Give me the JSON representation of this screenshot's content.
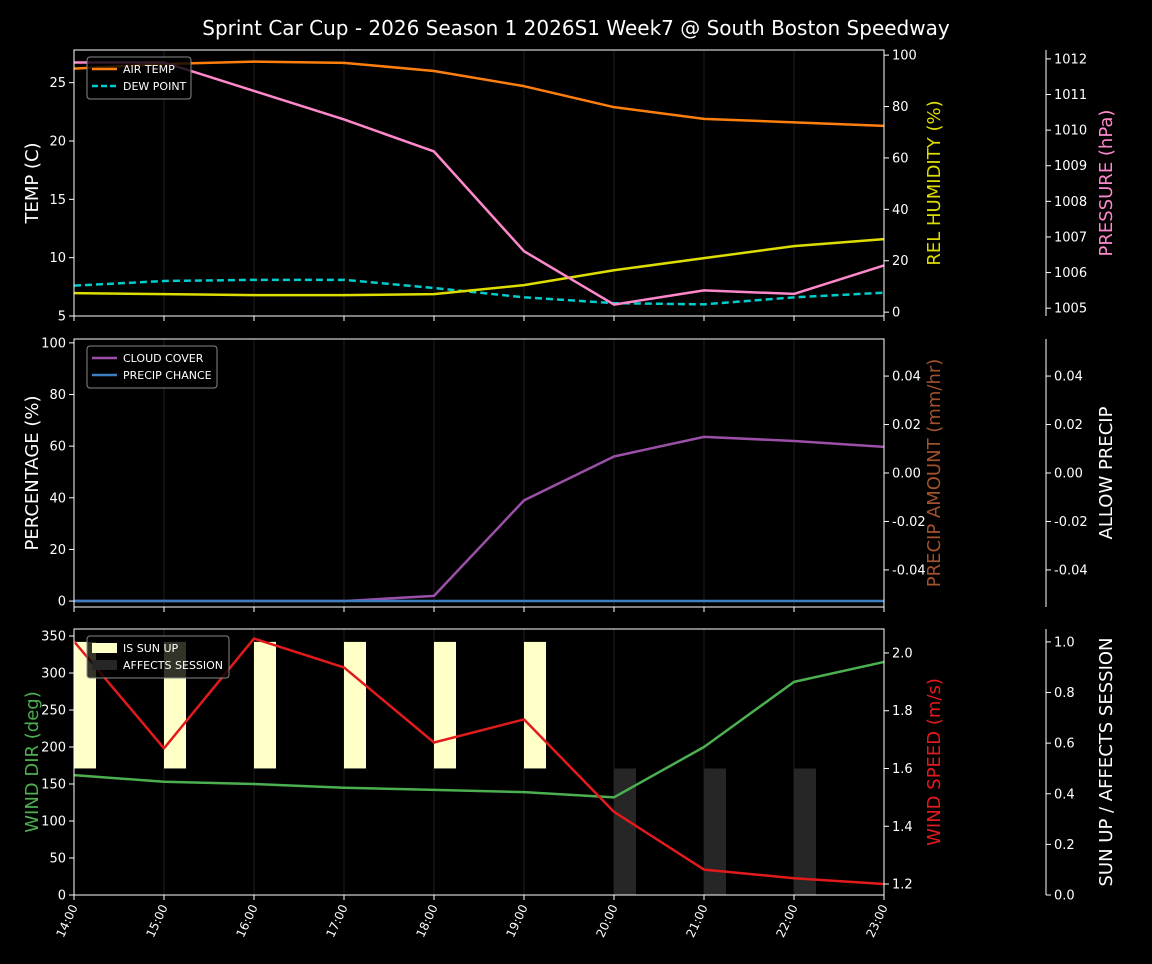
{
  "title": "Sprint Car Cup - 2026 Season 1 2026S1 Week7 @ South Boston Speedway",
  "chart_data": [
    {
      "type": "line",
      "x": [
        "14:00",
        "15:00",
        "16:00",
        "17:00",
        "18:00",
        "19:00",
        "20:00",
        "21:00",
        "22:00",
        "23:00"
      ],
      "axes": [
        {
          "side": "left",
          "label": "TEMP (C)",
          "color": "#ffffff",
          "ylim": [
            5,
            27.8
          ],
          "ticks": [
            5,
            10,
            15,
            20,
            25
          ]
        },
        {
          "side": "right",
          "label": "REL HUMIDITY (%)",
          "color": "#dddd00",
          "ylim": [
            -1.5,
            102
          ],
          "ticks": [
            0,
            20,
            40,
            60,
            80,
            100
          ]
        },
        {
          "side": "right2",
          "label": "PRESSURE (hPa)",
          "color": "#ff88cc",
          "ylim": [
            1004.78,
            1012.25
          ],
          "ticks": [
            1005,
            1006,
            1007,
            1008,
            1009,
            1010,
            1011,
            1012
          ]
        }
      ],
      "series": [
        {
          "name": "AIR TEMP",
          "axis": 0,
          "color": "#ff7f0e",
          "dash": false,
          "legend": true,
          "values": [
            26.2,
            26.6,
            26.8,
            26.7,
            26.0,
            24.7,
            22.9,
            21.9,
            21.6,
            21.3
          ]
        },
        {
          "name": "DEW POINT",
          "axis": 0,
          "color": "#00cccc",
          "dash": true,
          "legend": true,
          "values": [
            7.6,
            8.0,
            8.1,
            8.1,
            7.4,
            6.6,
            6.1,
            6.0,
            6.6,
            7.0
          ]
        },
        {
          "axis": 1,
          "color": "#dddd00",
          "dash": false,
          "legend": false,
          "values": [
            7.4,
            7.0,
            6.6,
            6.6,
            7.0,
            10.5,
            16.3,
            21.0,
            25.7,
            28.4
          ]
        },
        {
          "axis": 2,
          "color": "#ff88cc",
          "dash": false,
          "legend": false,
          "values": [
            1011.9,
            1011.9,
            1011.1,
            1010.3,
            1009.4,
            1006.6,
            1005.1,
            1005.5,
            1005.4,
            1006.2
          ]
        }
      ],
      "legend_placement": "upper-left",
      "grid": "vertical"
    },
    {
      "type": "line",
      "x": [
        "14:00",
        "15:00",
        "16:00",
        "17:00",
        "18:00",
        "19:00",
        "20:00",
        "21:00",
        "22:00",
        "23:00"
      ],
      "axes": [
        {
          "side": "left",
          "label": "PERCENTAGE (%)",
          "color": "#ffffff",
          "ylim": [
            -2.3,
            101.5
          ],
          "ticks": [
            0,
            20,
            40,
            60,
            80,
            100
          ]
        },
        {
          "side": "right",
          "label": "PRECIP AMOUNT (mm/hr)",
          "color": "#a0522d",
          "ylim": [
            -0.0553,
            0.0553
          ],
          "ticks": [
            "-0.04",
            "-0.02",
            "0.00",
            "0.02",
            "0.04"
          ]
        },
        {
          "side": "right2",
          "label": "ALLOW PRECIP",
          "color": "#ffffff",
          "ylim": [
            -0.0553,
            0.0553
          ],
          "ticks": [
            "-0.04",
            "-0.02",
            "0.00",
            "0.02",
            "0.04"
          ]
        }
      ],
      "series": [
        {
          "name": "CLOUD COVER",
          "axis": 0,
          "color": "#9b4fa8",
          "dash": false,
          "legend": true,
          "values": [
            0,
            0,
            0,
            0,
            2,
            39,
            56,
            63.6,
            62,
            59.7
          ]
        },
        {
          "name": "PRECIP CHANCE",
          "axis": 0,
          "color": "#3d7fc0",
          "dash": false,
          "legend": true,
          "values": [
            0,
            0,
            0,
            0,
            0,
            0,
            0,
            0,
            0,
            0
          ]
        }
      ],
      "legend_placement": "upper-left",
      "grid": "vertical"
    },
    {
      "type": "line",
      "x": [
        "14:00",
        "15:00",
        "16:00",
        "17:00",
        "18:00",
        "19:00",
        "20:00",
        "21:00",
        "22:00",
        "23:00"
      ],
      "axes": [
        {
          "side": "left",
          "label": "WIND DIR (deg)",
          "color": "#4caf50",
          "ylim": [
            0,
            359.5
          ],
          "ticks": [
            0,
            50,
            100,
            150,
            200,
            250,
            300,
            350
          ]
        },
        {
          "side": "right",
          "label": "WIND SPEED (m/s)",
          "color": "#e31a1c",
          "ylim": [
            1.162,
            2.083
          ],
          "ticks": [
            "1.2",
            "1.4",
            "1.6",
            "1.8",
            "2.0"
          ]
        },
        {
          "side": "right2",
          "label": "SUN UP / AFFECTS SESSION",
          "color": "#ffffff",
          "ylim": [
            0,
            1.051
          ],
          "ticks": [
            "0.0",
            "0.2",
            "0.4",
            "0.6",
            "0.8",
            "1.0"
          ]
        }
      ],
      "bars": [
        {
          "name": "IS SUN UP",
          "axis": 2,
          "color": "#ffffc8",
          "base": 0.5,
          "height": 0.5,
          "values": [
            1,
            1,
            1,
            1,
            1,
            1,
            0,
            0,
            0,
            0
          ]
        },
        {
          "name": "AFFECTS SESSION",
          "axis": 2,
          "color": "#262626",
          "base": 0,
          "height": 0.5,
          "values": [
            0,
            0,
            0,
            0,
            0,
            0,
            1,
            1,
            1,
            0
          ]
        }
      ],
      "series": [
        {
          "axis": 0,
          "color": "#4caf50",
          "dash": false,
          "legend": false,
          "values": [
            162,
            153,
            150,
            145,
            142,
            139,
            132,
            200,
            288,
            315
          ]
        },
        {
          "axis": 1,
          "color": "#e31a1c",
          "dash": false,
          "legend": false,
          "values": [
            2.04,
            1.67,
            2.05,
            1.95,
            1.69,
            1.77,
            1.45,
            1.25,
            1.22,
            1.2
          ]
        }
      ],
      "legend_placement": "upper-left",
      "grid": "vertical"
    }
  ]
}
